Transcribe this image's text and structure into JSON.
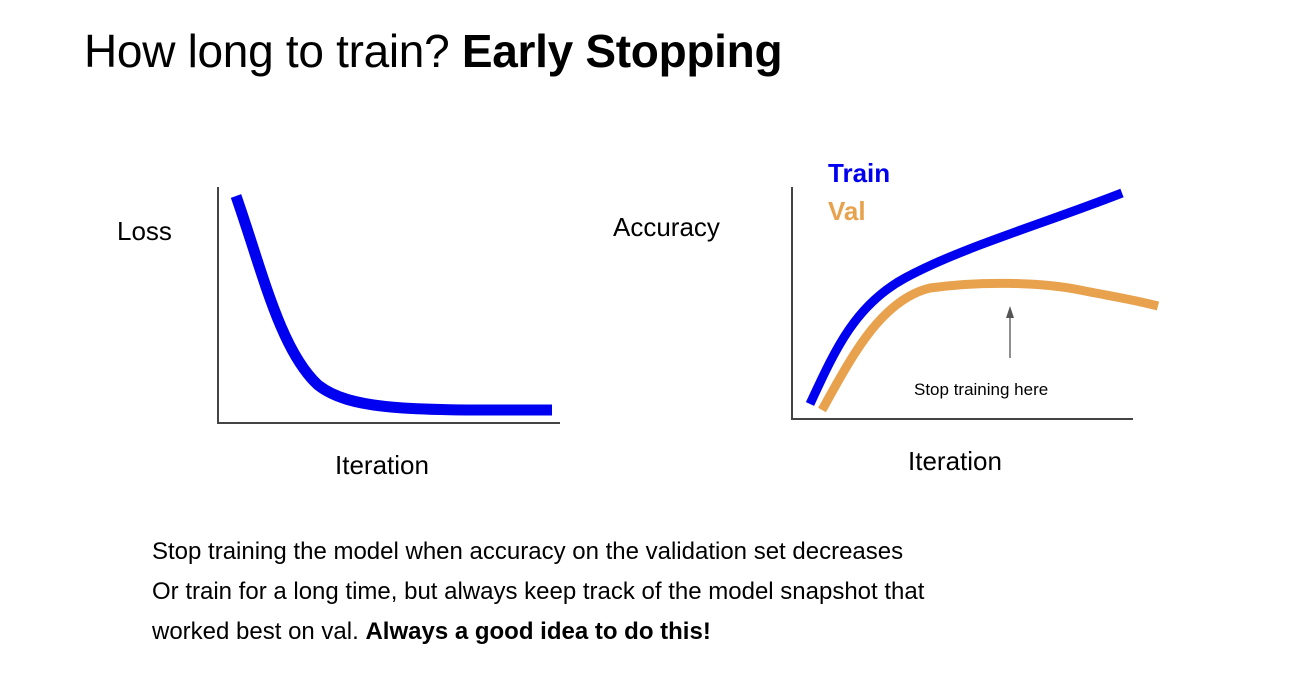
{
  "title": {
    "prefix": "How long to train?",
    "emphasis": "Early Stopping"
  },
  "colors": {
    "train": "#0000f0",
    "val": "#e8a24e",
    "axis": "#444444"
  },
  "loss_chart": {
    "ylabel": "Loss",
    "xlabel": "Iteration"
  },
  "accuracy_chart": {
    "ylabel": "Accuracy",
    "xlabel": "Iteration",
    "legend": {
      "train": "Train",
      "val": "Val"
    },
    "annotation": "Stop training here"
  },
  "caption": {
    "line1": "Stop training the model when accuracy on the validation set decreases",
    "line2": "Or train for a long time, but always keep track of the model snapshot that",
    "line3_prefix": "worked best on val.",
    "line3_emphasis": "Always a good idea to do this!"
  }
}
